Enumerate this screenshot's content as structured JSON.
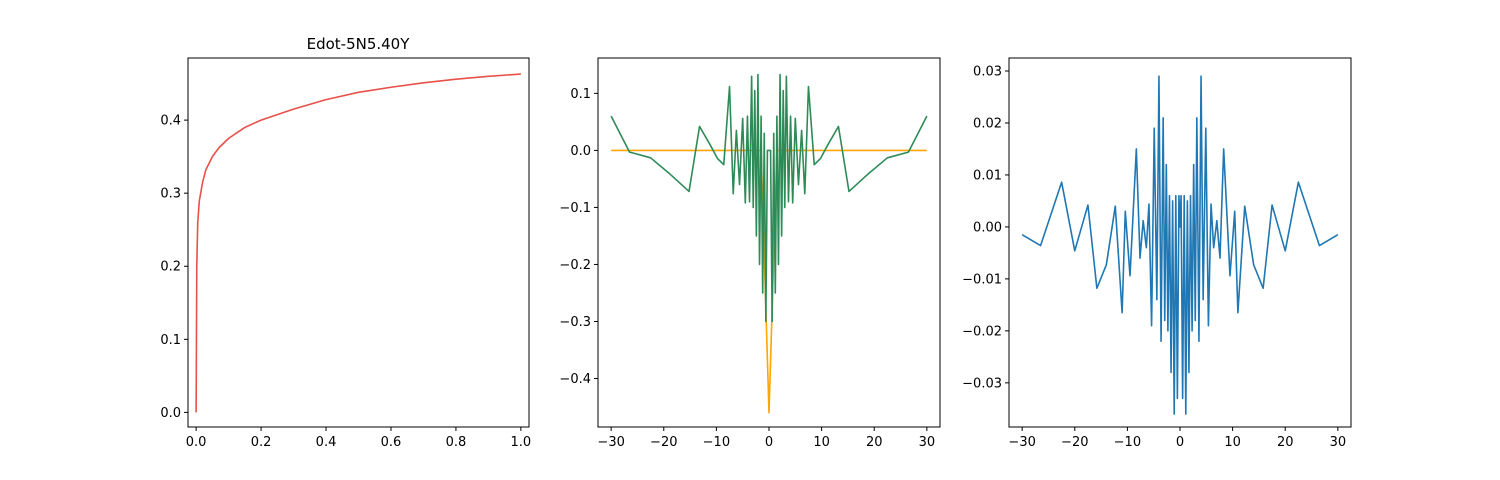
{
  "chart_data": [
    {
      "type": "line",
      "title": "Edot-5N5.40Y",
      "xlim": [
        -0.025,
        1.025
      ],
      "ylim": [
        -0.02,
        0.485
      ],
      "xticks": [
        0.0,
        0.2,
        0.4,
        0.6,
        0.8,
        1.0
      ],
      "xtick_labels": [
        "0.0",
        "0.2",
        "0.4",
        "0.6",
        "0.8",
        "1.0"
      ],
      "yticks": [
        0.0,
        0.1,
        0.2,
        0.3,
        0.4
      ],
      "ytick_labels": [
        "0.0",
        "0.1",
        "0.2",
        "0.3",
        "0.4"
      ],
      "series": [
        {
          "color": "#e8504a",
          "x": [
            0.0,
            0.002,
            0.005,
            0.01,
            0.02,
            0.03,
            0.05,
            0.07,
            0.1,
            0.15,
            0.2,
            0.3,
            0.4,
            0.5,
            0.6,
            0.7,
            0.8,
            0.9,
            1.0
          ],
          "y": [
            0.0,
            0.2,
            0.26,
            0.29,
            0.315,
            0.332,
            0.35,
            0.362,
            0.375,
            0.39,
            0.4,
            0.415,
            0.428,
            0.438,
            0.445,
            0.451,
            0.456,
            0.46,
            0.463
          ]
        }
      ]
    },
    {
      "type": "line",
      "title": "",
      "xlim": [
        -32.5,
        32.5
      ],
      "ylim": [
        -0.485,
        0.162
      ],
      "xticks": [
        -30,
        -20,
        -10,
        0,
        10,
        20,
        30
      ],
      "xtick_labels": [
        "−30",
        "−20",
        "−10",
        "0",
        "10",
        "20",
        "30"
      ],
      "yticks": [
        0.1,
        0.0,
        -0.1,
        -0.2,
        -0.3,
        -0.4
      ],
      "ytick_labels": [
        "0.1",
        "0.0",
        "−0.1",
        "−0.2",
        "−0.3",
        "−0.4"
      ],
      "series": [
        {
          "color": "#ffa500",
          "x": [
            -30,
            -1.5,
            0,
            1.5,
            30
          ],
          "y": [
            0.0,
            0.0,
            -0.46,
            0.0,
            0.0
          ]
        },
        {
          "color": "#2e8b57",
          "x": [
            -30,
            -26.5,
            -22.5,
            -19,
            -15.2,
            -13.2,
            -11.2,
            -9.8,
            -8.6,
            -7.5,
            -6.8,
            -6.2,
            -5.6,
            -5.0,
            -4.5,
            -4.1,
            -3.7,
            -3.3,
            -3.0,
            -2.7,
            -2.4,
            -2.1,
            -1.8,
            -1.5,
            -1.2,
            -0.9,
            -0.6,
            -0.3,
            0,
            0.3,
            0.6,
            0.9,
            1.2,
            1.5,
            1.8,
            2.1,
            2.4,
            2.7,
            3.0,
            3.3,
            3.7,
            4.1,
            4.5,
            5.0,
            5.6,
            6.2,
            6.8,
            7.5,
            8.6,
            9.8,
            11.2,
            13.2,
            15.2,
            19,
            22.5,
            26.5,
            30
          ],
          "y": [
            0.06,
            -0.003,
            -0.013,
            -0.04,
            -0.072,
            0.042,
            0.01,
            -0.014,
            -0.025,
            0.112,
            -0.076,
            0.035,
            -0.06,
            0.056,
            -0.092,
            0.06,
            -0.09,
            0.13,
            -0.1,
            0.105,
            -0.15,
            0.133,
            -0.2,
            0.06,
            -0.25,
            0.03,
            -0.3,
            0.0,
            0.0,
            0.0,
            -0.3,
            0.03,
            -0.25,
            0.06,
            -0.2,
            0.133,
            -0.15,
            0.105,
            -0.1,
            0.13,
            -0.09,
            0.06,
            -0.092,
            0.056,
            -0.06,
            0.035,
            -0.076,
            0.112,
            -0.025,
            -0.014,
            0.01,
            0.042,
            -0.072,
            -0.04,
            -0.013,
            -0.003,
            0.06
          ]
        }
      ]
    },
    {
      "type": "line",
      "title": "",
      "xlim": [
        -32.5,
        32.5
      ],
      "ylim": [
        -0.0385,
        0.0325
      ],
      "xticks": [
        -30,
        -20,
        -10,
        0,
        10,
        20,
        30
      ],
      "xtick_labels": [
        "−30",
        "−20",
        "−10",
        "0",
        "10",
        "20",
        "30"
      ],
      "yticks": [
        0.03,
        0.02,
        0.01,
        0.0,
        -0.01,
        -0.02,
        -0.03
      ],
      "ytick_labels": [
        "0.03",
        "0.02",
        "0.01",
        "0.00",
        "−0.01",
        "−0.02",
        "−0.03"
      ],
      "series": [
        {
          "color": "#1f77b4",
          "x": [
            -30,
            -26.5,
            -22.5,
            -20,
            -17.5,
            -15.8,
            -14,
            -12.3,
            -11,
            -10.4,
            -9.5,
            -8.3,
            -7.6,
            -7,
            -6.4,
            -5.9,
            -5.4,
            -4.9,
            -4.4,
            -4.0,
            -3.6,
            -3.2,
            -2.9,
            -2.6,
            -2.3,
            -2.0,
            -1.7,
            -1.4,
            -1.1,
            -0.8,
            -0.5,
            -0.2,
            0,
            0.2,
            0.5,
            0.8,
            1.1,
            1.4,
            1.7,
            2.0,
            2.3,
            2.6,
            2.9,
            3.2,
            3.6,
            4.0,
            4.4,
            4.9,
            5.4,
            5.9,
            6.4,
            7,
            7.6,
            8.3,
            9.5,
            10.4,
            11,
            12.3,
            14,
            15.8,
            17.5,
            20,
            22.5,
            26.5,
            30
          ],
          "y": [
            -0.0015,
            -0.0036,
            0.0086,
            -0.0046,
            0.0042,
            -0.0118,
            -0.0073,
            0.004,
            -0.0165,
            0.003,
            -0.0094,
            0.015,
            -0.006,
            0.0012,
            -0.004,
            0.0044,
            -0.019,
            0.019,
            -0.014,
            0.029,
            -0.022,
            0.021,
            -0.018,
            0.012,
            -0.02,
            0.006,
            -0.028,
            0.005,
            -0.036,
            0.006,
            -0.033,
            0.006,
            0.0,
            0.006,
            -0.033,
            0.006,
            -0.036,
            0.005,
            -0.028,
            0.006,
            -0.02,
            0.012,
            -0.018,
            0.021,
            -0.022,
            0.029,
            -0.014,
            0.019,
            -0.019,
            0.0044,
            -0.004,
            0.0012,
            -0.006,
            0.015,
            -0.0094,
            0.003,
            -0.0165,
            0.004,
            -0.0073,
            -0.0118,
            0.0042,
            -0.0046,
            0.0086,
            -0.0036,
            -0.0015
          ]
        }
      ]
    }
  ]
}
